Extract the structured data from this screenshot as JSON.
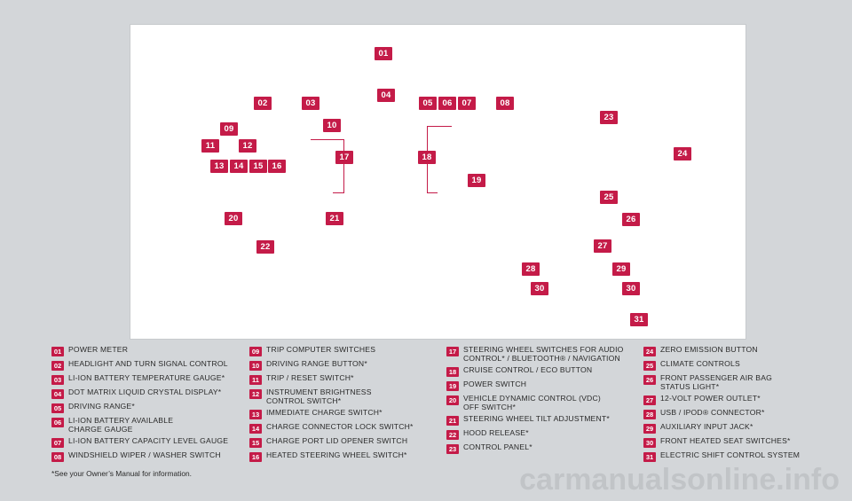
{
  "colors": {
    "marker": "#c41b48",
    "panel": "#ffffff",
    "background": "#d3d6d9"
  },
  "markers": {
    "m01": "01",
    "m02": "02",
    "m03": "03",
    "m04": "04",
    "m05": "05",
    "m06": "06",
    "m07": "07",
    "m08": "08",
    "m09": "09",
    "m10": "10",
    "m11": "11",
    "m12": "12",
    "m13": "13",
    "m14": "14",
    "m15": "15",
    "m16": "16",
    "m17": "17",
    "m18": "18",
    "m19": "19",
    "m20": "20",
    "m21": "21",
    "m22": "22",
    "m23": "23",
    "m24": "24",
    "m25": "25",
    "m26": "26",
    "m27": "27",
    "m28": "28",
    "m29": "29",
    "m30a": "30",
    "m30b": "30",
    "m31": "31"
  },
  "legend": [
    {
      "num": "01",
      "text": "POWER METER"
    },
    {
      "num": "02",
      "text": "HEADLIGHT AND TURN SIGNAL CONTROL"
    },
    {
      "num": "03",
      "text": "LI-ION BATTERY TEMPERATURE GAUGE*"
    },
    {
      "num": "04",
      "text": "DOT MATRIX LIQUID CRYSTAL DISPLAY*"
    },
    {
      "num": "05",
      "text": "DRIVING RANGE*"
    },
    {
      "num": "06",
      "text": "LI-ION BATTERY AVAILABLE\nCHARGE GAUGE"
    },
    {
      "num": "07",
      "text": "LI-ION BATTERY CAPACITY LEVEL GAUGE"
    },
    {
      "num": "08",
      "text": "WINDSHIELD WIPER / WASHER SWITCH"
    },
    {
      "num": "09",
      "text": "TRIP COMPUTER SWITCHES"
    },
    {
      "num": "10",
      "text": "DRIVING RANGE BUTTON*"
    },
    {
      "num": "11",
      "text": "TRIP / RESET SWITCH*"
    },
    {
      "num": "12",
      "text": "INSTRUMENT BRIGHTNESS\nCONTROL SWITCH*"
    },
    {
      "num": "13",
      "text": "IMMEDIATE CHARGE SWITCH*"
    },
    {
      "num": "14",
      "text": "CHARGE CONNECTOR LOCK SWITCH*"
    },
    {
      "num": "15",
      "text": "CHARGE PORT LID OPENER SWITCH"
    },
    {
      "num": "16",
      "text": "HEATED STEERING WHEEL SWITCH*"
    },
    {
      "num": "17",
      "text": "STEERING WHEEL SWITCHES FOR AUDIO\nCONTROL* / BLUETOOTH® / NAVIGATION"
    },
    {
      "num": "18",
      "text": "CRUISE CONTROL / ECO BUTTON"
    },
    {
      "num": "19",
      "text": "POWER SWITCH"
    },
    {
      "num": "20",
      "text": "VEHICLE DYNAMIC CONTROL (VDC)\nOFF SWITCH*"
    },
    {
      "num": "21",
      "text": "STEERING WHEEL TILT ADJUSTMENT*"
    },
    {
      "num": "22",
      "text": "HOOD RELEASE*"
    },
    {
      "num": "23",
      "text": "CONTROL PANEL*"
    },
    {
      "num": "24",
      "text": "ZERO EMISSION BUTTON"
    },
    {
      "num": "25",
      "text": "CLIMATE CONTROLS"
    },
    {
      "num": "26",
      "text": "FRONT PASSENGER AIR BAG\nSTATUS LIGHT*"
    },
    {
      "num": "27",
      "text": "12-VOLT POWER OUTLET*"
    },
    {
      "num": "28",
      "text": "USB / IPOD® CONNECTOR*"
    },
    {
      "num": "29",
      "text": "AUXILIARY INPUT JACK*"
    },
    {
      "num": "30",
      "text": "FRONT HEATED SEAT SWITCHES*"
    },
    {
      "num": "31",
      "text": "ELECTRIC SHIFT CONTROL SYSTEM"
    }
  ],
  "footnote": "*See your Owner’s Manual for information.",
  "watermark": "carmanualsonline.info"
}
